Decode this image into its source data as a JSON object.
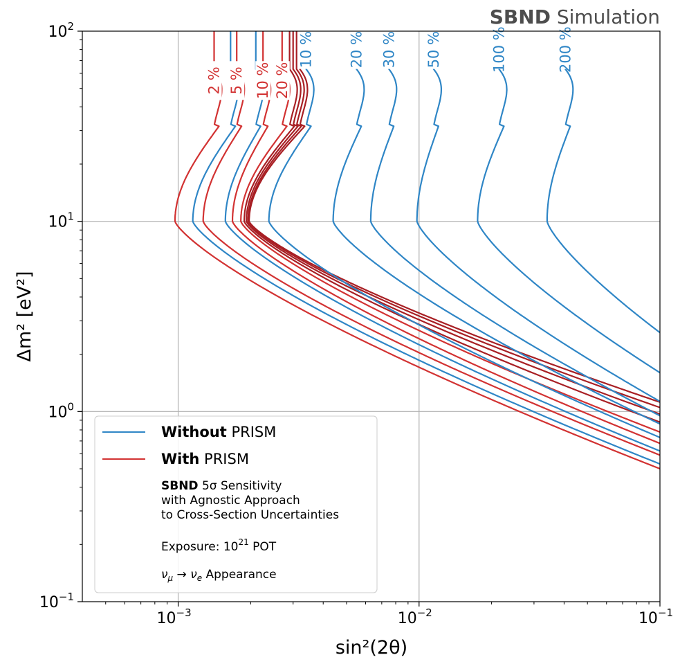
{
  "chart_data": {
    "type": "line",
    "title": "SBND Simulation",
    "title_bold": "SBND",
    "title_rest": " Simulation",
    "xlabel": "sin²(2θ)",
    "ylabel": "Δm² [eV²]",
    "xscale": "log",
    "yscale": "log",
    "xlim": [
      0.0004,
      0.1
    ],
    "ylim": [
      0.1,
      100
    ],
    "grid": true,
    "x_ticks": [
      {
        "value": 0.001,
        "base": "10",
        "exp": "−3"
      },
      {
        "value": 0.01,
        "base": "10",
        "exp": "−2"
      },
      {
        "value": 0.1,
        "base": "10",
        "exp": "−1"
      }
    ],
    "y_ticks": [
      {
        "value": 0.1,
        "base": "10",
        "exp": "−1"
      },
      {
        "value": 1,
        "base": "10",
        "exp": "0"
      },
      {
        "value": 10,
        "base": "10",
        "exp": "1"
      },
      {
        "value": 100,
        "base": "10",
        "exp": "2"
      }
    ],
    "colors": {
      "without": "#2f86c6",
      "with": "#d23232",
      "with_dark": "#a81f24",
      "grid": "#b0b0b0",
      "title": "#4d4d4d"
    },
    "series": [
      {
        "name": "With PRISM 2 %",
        "group": "with",
        "label": "2 %",
        "top_x": 0.00141,
        "knee_x": 0.00097,
        "low_x": 0.1,
        "low_y": 0.5,
        "label_dm2": 55
      },
      {
        "name": "Without PRISM 2 %",
        "group": "without",
        "label": "",
        "top_x": 0.00165,
        "knee_x": 0.00115,
        "low_x": 0.1,
        "low_y": 0.53,
        "label_dm2": 0
      },
      {
        "name": "With PRISM 5 %",
        "group": "with",
        "label": "5 %",
        "top_x": 0.00175,
        "knee_x": 0.00127,
        "low_x": 0.1,
        "low_y": 0.59,
        "label_dm2": 55
      },
      {
        "name": "Without PRISM 5 %",
        "group": "without",
        "label": "",
        "top_x": 0.0021,
        "knee_x": 0.00157,
        "low_x": 0.1,
        "low_y": 0.62,
        "label_dm2": 0
      },
      {
        "name": "With PRISM 10 %",
        "group": "with",
        "label": "10 %",
        "top_x": 0.00225,
        "knee_x": 0.00168,
        "low_x": 0.1,
        "low_y": 0.68,
        "label_dm2": 55
      },
      {
        "name": "With PRISM 20 %",
        "group": "with",
        "label": "20 %",
        "top_x": 0.0027,
        "knee_x": 0.00182,
        "low_x": 0.1,
        "low_y": 0.78,
        "label_dm2": 55
      },
      {
        "name": "With PRISM 30 %",
        "group": "with_dark",
        "label": "",
        "top_x": 0.0029,
        "knee_x": 0.00188,
        "low_x": 0.1,
        "low_y": 0.88,
        "label_dm2": 0
      },
      {
        "name": "With PRISM 50 %",
        "group": "with_dark",
        "label": "",
        "top_x": 0.003,
        "knee_x": 0.00192,
        "low_x": 0.1,
        "low_y": 0.97,
        "label_dm2": 0
      },
      {
        "name": "With PRISM 100 %",
        "group": "with_dark",
        "label": "",
        "top_x": 0.0031,
        "knee_x": 0.00195,
        "low_x": 0.1,
        "low_y": 1.05,
        "label_dm2": 0
      },
      {
        "name": "With PRISM 200 %",
        "group": "with_dark",
        "label": "",
        "top_x": 0.0032,
        "knee_x": 0.00197,
        "low_x": 0.1,
        "low_y": 1.12,
        "label_dm2": 0
      },
      {
        "name": "Without PRISM 10 %",
        "group": "without",
        "label": "10 %",
        "top_x": 0.0034,
        "knee_x": 0.00238,
        "low_x": 0.1,
        "low_y": 0.73,
        "label_dm2": 80
      },
      {
        "name": "Without PRISM 20 %",
        "group": "without",
        "label": "20 %",
        "top_x": 0.0055,
        "knee_x": 0.0044,
        "low_x": 0.1,
        "low_y": 0.86,
        "label_dm2": 80
      },
      {
        "name": "Without PRISM 30 %",
        "group": "without",
        "label": "30 %",
        "top_x": 0.0075,
        "knee_x": 0.0063,
        "low_x": 0.1,
        "low_y": 0.95,
        "label_dm2": 80
      },
      {
        "name": "Without PRISM 50 %",
        "group": "without",
        "label": "50 %",
        "top_x": 0.0115,
        "knee_x": 0.0098,
        "low_x": 0.1,
        "low_y": 1.13,
        "label_dm2": 80
      },
      {
        "name": "Without PRISM 100 %",
        "group": "without",
        "label": "100 %",
        "top_x": 0.0215,
        "knee_x": 0.0175,
        "low_x": 0.1,
        "low_y": 1.6,
        "label_dm2": 80
      },
      {
        "name": "Without PRISM 200 %",
        "group": "without",
        "label": "200 %",
        "top_x": 0.0405,
        "knee_x": 0.034,
        "low_x": 0.1,
        "low_y": 2.6,
        "label_dm2": 80
      }
    ],
    "legend": {
      "location": "lower-left",
      "entries": [
        {
          "bold": "Without",
          "rest": " PRISM",
          "color": "#2f86c6"
        },
        {
          "bold": "With",
          "rest": " PRISM",
          "color": "#d23232"
        }
      ],
      "note_bold": "SBND",
      "note_line1_rest": " 5σ Sensitivity",
      "note_line2": "with Agnostic Approach",
      "note_line3": "to Cross-Section Uncertainties",
      "exposure_prefix": "Exposure: 10",
      "exposure_exp": "21",
      "exposure_suffix": " POT",
      "appearance_from": "ν",
      "appearance_from_sub": "μ",
      "appearance_arrow": " → ",
      "appearance_to": "ν",
      "appearance_to_sub": "e",
      "appearance_suffix": " Appearance"
    }
  }
}
